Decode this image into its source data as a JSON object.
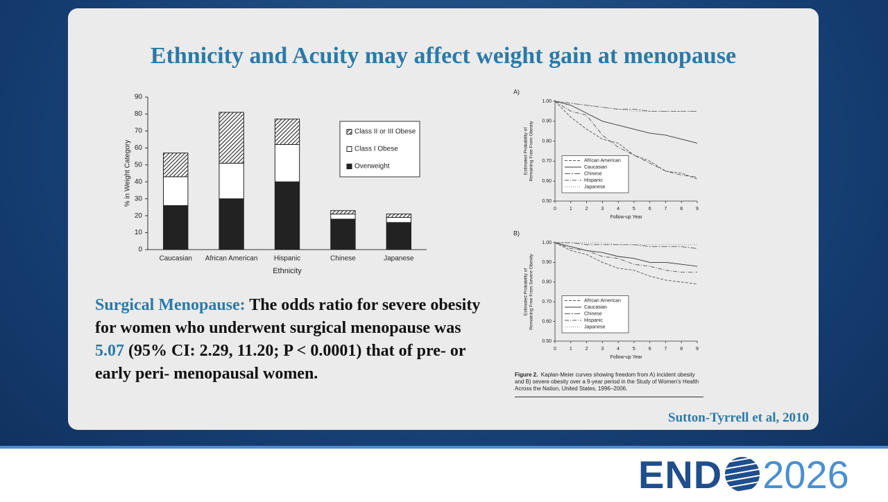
{
  "slide": {
    "title": "Ethnicity and Acuity may affect weight gain at menopause",
    "body": {
      "label": "Surgical Menopause:",
      "text_before": "The odds ratio for severe obesity for women who underwent surgical menopause was",
      "highlight": "5.07",
      "text_after": "(95% CI: 2.29, 11.20; P < 0.0001) that of pre- or early peri- menopausal women."
    },
    "citation": "Sutton-Tyrrell et al, 2010",
    "figure_caption": {
      "label": "Figure 2.",
      "text": "Kaplan-Meier curves showing freedom from A) incident obesity and B) severe obesity over a 9-year period in the Study of Women's Health Across the Nation, United States, 1996–2006."
    },
    "logo": {
      "left": "END",
      "right": "2026"
    }
  },
  "chart_data": [
    {
      "type": "bar",
      "stacked": true,
      "xlabel": "Ethnicity",
      "ylabel": "% in Weight Category",
      "categories": [
        "Caucasian",
        "African American",
        "Hispanic",
        "Chinese",
        "Japanese"
      ],
      "series": [
        {
          "name": "Overweight",
          "color": "#222222",
          "values": [
            26,
            30,
            40,
            18,
            16
          ]
        },
        {
          "name": "Class I Obese",
          "color": "#ffffff",
          "values": [
            17,
            21,
            22,
            3,
            3
          ]
        },
        {
          "name": "Class II or III Obese",
          "color": "#444444",
          "hatch": true,
          "values": [
            14,
            30,
            15,
            2,
            2
          ]
        }
      ],
      "ylim": [
        0,
        90
      ],
      "yticks": [
        0,
        10,
        20,
        30,
        40,
        50,
        60,
        70,
        80,
        90
      ],
      "grid": false,
      "legend": "upper right"
    },
    {
      "type": "line",
      "panel": "A)",
      "xlabel": "Follow-up Year",
      "ylabel": [
        "Estimated Probability of",
        "Remaining Free From Obesity"
      ],
      "x": [
        0,
        1,
        2,
        3,
        4,
        5,
        6,
        7,
        8,
        9
      ],
      "series": [
        {
          "name": "African American",
          "color": "#555555",
          "dash": "4 2",
          "values": [
            1.0,
            0.92,
            0.86,
            0.81,
            0.79,
            0.73,
            0.7,
            0.65,
            0.64,
            0.61
          ]
        },
        {
          "name": "Caucasian",
          "color": "#333333",
          "dash": "none",
          "values": [
            1.0,
            0.98,
            0.94,
            0.9,
            0.88,
            0.86,
            0.84,
            0.83,
            0.81,
            0.79
          ]
        },
        {
          "name": "Chinese",
          "color": "#555555",
          "dash": "8 2 2 2",
          "values": [
            1.0,
            0.99,
            0.98,
            0.97,
            0.96,
            0.96,
            0.95,
            0.95,
            0.95,
            0.95
          ]
        },
        {
          "name": "Hispanic",
          "color": "#555555",
          "dash": "6 2 1 2",
          "values": [
            1.0,
            0.95,
            0.93,
            0.83,
            0.77,
            0.73,
            0.69,
            0.65,
            0.63,
            0.62
          ]
        },
        {
          "name": "Japanese",
          "color": "#888888",
          "dash": "1 2",
          "values": [
            1.0,
            0.99,
            0.98,
            0.97,
            0.96,
            0.95,
            0.95,
            0.95,
            0.95,
            0.95
          ]
        }
      ],
      "xlim": [
        0,
        9
      ],
      "xticks": [
        0,
        1,
        2,
        3,
        4,
        5,
        6,
        7,
        8,
        9
      ],
      "ylim": [
        0.5,
        1.0
      ],
      "yticks": [
        {
          "value": 0.5,
          "label": "0.50"
        },
        {
          "value": 0.6,
          "label": "0.60"
        },
        {
          "value": 0.7,
          "label": "0.70"
        },
        {
          "value": 0.8,
          "label": "0.80"
        },
        {
          "value": 0.9,
          "label": "0.90"
        },
        {
          "value": 1.0,
          "label": "1.00"
        }
      ],
      "grid": false,
      "legend": "lower left"
    },
    {
      "type": "line",
      "panel": "B)",
      "xlabel": "Follow-up Year",
      "ylabel": [
        "Estimated Probability of",
        "Remaining Free From Severe Obesity"
      ],
      "x": [
        0,
        1,
        2,
        3,
        4,
        5,
        6,
        7,
        8,
        9
      ],
      "series": [
        {
          "name": "African American",
          "color": "#555555",
          "dash": "4 2",
          "values": [
            1.0,
            0.96,
            0.94,
            0.9,
            0.87,
            0.86,
            0.83,
            0.81,
            0.8,
            0.79
          ]
        },
        {
          "name": "Caucasian",
          "color": "#333333",
          "dash": "none",
          "values": [
            1.0,
            0.98,
            0.96,
            0.95,
            0.93,
            0.92,
            0.9,
            0.9,
            0.89,
            0.88
          ]
        },
        {
          "name": "Chinese",
          "color": "#555555",
          "dash": "8 2 2 2",
          "values": [
            1.0,
            1.0,
            0.99,
            0.99,
            0.99,
            0.99,
            0.98,
            0.98,
            0.98,
            0.97
          ]
        },
        {
          "name": "Hispanic",
          "color": "#555555",
          "dash": "6 2 1 2",
          "values": [
            1.0,
            0.97,
            0.96,
            0.93,
            0.92,
            0.89,
            0.88,
            0.86,
            0.85,
            0.85
          ]
        },
        {
          "name": "Japanese",
          "color": "#888888",
          "dash": "1 2",
          "values": [
            1.0,
            1.0,
            1.0,
            1.0,
            0.99,
            0.99,
            0.99,
            0.99,
            0.99,
            0.99
          ]
        }
      ],
      "xlim": [
        0,
        9
      ],
      "xticks": [
        0,
        1,
        2,
        3,
        4,
        5,
        6,
        7,
        8,
        9
      ],
      "ylim": [
        0.5,
        1.0
      ],
      "yticks": [
        {
          "value": 0.5,
          "label": "0.50"
        },
        {
          "value": 0.6,
          "label": "0.60"
        },
        {
          "value": 0.7,
          "label": "0.70"
        },
        {
          "value": 0.8,
          "label": "0.80"
        },
        {
          "value": 0.9,
          "label": "0.90"
        },
        {
          "value": 1.0,
          "label": "1.00"
        }
      ],
      "grid": false,
      "legend": "lower left"
    }
  ]
}
